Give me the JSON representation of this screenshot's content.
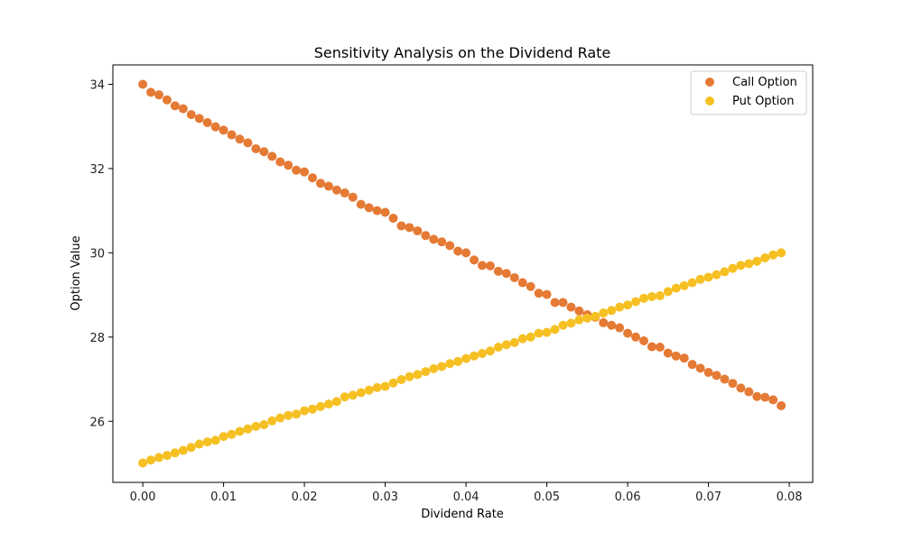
{
  "chart_data": {
    "type": "scatter",
    "title": "Sensitivity Analysis on the Dividend Rate",
    "xlabel": "Dividend Rate",
    "ylabel": "Option Value",
    "xlim": [
      -0.0037,
      0.0829
    ],
    "ylim": [
      24.55,
      34.46
    ],
    "xticks": [
      0.0,
      0.01,
      0.02,
      0.03,
      0.04,
      0.05,
      0.06,
      0.07,
      0.08
    ],
    "xtick_labels": [
      "0.00",
      "0.01",
      "0.02",
      "0.03",
      "0.04",
      "0.05",
      "0.06",
      "0.07",
      "0.08"
    ],
    "yticks": [
      26,
      28,
      30,
      32,
      34
    ],
    "ytick_labels": [
      "26",
      "28",
      "30",
      "32",
      "34"
    ],
    "grid": false,
    "legend_position": "top-right",
    "x": {
      "start": 0.0,
      "step": 0.001,
      "count": 80
    },
    "series": [
      {
        "name": "Call Option",
        "color": "#E57A35",
        "values": [
          34.0,
          33.81,
          33.75,
          33.63,
          33.49,
          33.42,
          33.28,
          33.19,
          33.09,
          32.99,
          32.91,
          32.8,
          32.7,
          32.61,
          32.47,
          32.4,
          32.29,
          32.16,
          32.08,
          31.96,
          31.92,
          31.78,
          31.65,
          31.58,
          31.49,
          31.42,
          31.32,
          31.15,
          31.07,
          31.0,
          30.96,
          30.82,
          30.64,
          30.6,
          30.52,
          30.41,
          30.32,
          30.26,
          30.17,
          30.04,
          30.0,
          29.83,
          29.7,
          29.69,
          29.56,
          29.51,
          29.41,
          29.29,
          29.2,
          29.04,
          29.01,
          28.82,
          28.82,
          28.71,
          28.62,
          28.53,
          28.47,
          28.34,
          28.28,
          28.22,
          28.09,
          28.0,
          27.91,
          27.77,
          27.76,
          27.62,
          27.55,
          27.5,
          27.35,
          27.26,
          27.16,
          27.09,
          27.0,
          26.9,
          26.79,
          26.7,
          26.59,
          26.57,
          26.51,
          26.37
        ]
      },
      {
        "name": "Put Option",
        "color": "#F6C023",
        "values": [
          25.01,
          25.08,
          25.14,
          25.19,
          25.25,
          25.31,
          25.38,
          25.46,
          25.51,
          25.55,
          25.64,
          25.69,
          25.76,
          25.82,
          25.88,
          25.92,
          26.01,
          26.08,
          26.14,
          26.17,
          26.25,
          26.29,
          26.35,
          26.41,
          26.47,
          26.58,
          26.62,
          26.68,
          26.74,
          26.8,
          26.83,
          26.91,
          26.99,
          27.06,
          27.11,
          27.18,
          27.25,
          27.3,
          27.37,
          27.42,
          27.49,
          27.55,
          27.61,
          27.67,
          27.76,
          27.82,
          27.87,
          27.96,
          28.0,
          28.09,
          28.11,
          28.18,
          28.28,
          28.33,
          28.41,
          28.45,
          28.49,
          28.57,
          28.63,
          28.71,
          28.76,
          28.84,
          28.92,
          28.96,
          28.98,
          29.08,
          29.16,
          29.22,
          29.29,
          29.37,
          29.42,
          29.48,
          29.55,
          29.63,
          29.7,
          29.74,
          29.8,
          29.88,
          29.95,
          30.0
        ]
      }
    ]
  }
}
